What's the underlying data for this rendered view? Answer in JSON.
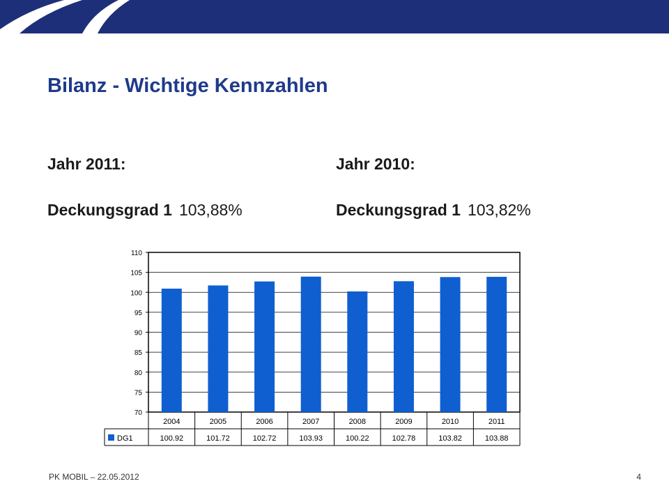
{
  "slide": {
    "title": "Bilanz - Wichtige Kennzahlen",
    "left": {
      "year_label": "Jahr 2011:",
      "metric_label": "Deckungsgrad 1",
      "metric_value": "103,88%"
    },
    "right": {
      "year_label": "Jahr 2010:",
      "metric_label": "Deckungsgrad 1",
      "metric_value": "103,82%"
    },
    "footer": "PK MOBIL – 22.05.2012",
    "page_number": "4"
  },
  "colors": {
    "banner": "#1e2f7a",
    "title": "#1f3a8a",
    "bar": "#0f5fd0"
  },
  "chart_data": {
    "type": "bar",
    "categories": [
      "2004",
      "2005",
      "2006",
      "2007",
      "2008",
      "2009",
      "2010",
      "2011"
    ],
    "series": [
      {
        "name": "DG1",
        "values": [
          100.92,
          101.72,
          102.72,
          103.93,
          100.22,
          102.78,
          103.82,
          103.88
        ]
      }
    ],
    "value_labels": [
      "100.92",
      "101.72",
      "102.72",
      "103.93",
      "100.22",
      "102.78",
      "103.82",
      "103.88"
    ],
    "y_ticks": [
      "110",
      "105",
      "100",
      "95",
      "90",
      "85",
      "80",
      "75",
      "70"
    ],
    "ylim": [
      70,
      110
    ],
    "grid": true,
    "legend": "data-table-left"
  }
}
